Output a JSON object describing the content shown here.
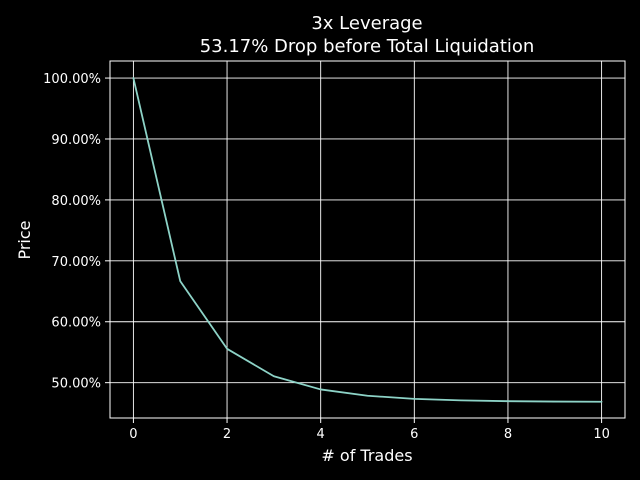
{
  "chart_data": {
    "type": "line",
    "title": "3x Leverage",
    "subtitle": "53.17% Drop before Total Liquidation",
    "xlabel": "# of Trades",
    "ylabel": "Price",
    "xlim": [
      -0.5,
      10.5
    ],
    "ylim": [
      44.2,
      102.8
    ],
    "x_ticks": [
      0,
      2,
      4,
      6,
      8,
      10
    ],
    "x_tick_labels": [
      "0",
      "2",
      "4",
      "6",
      "8",
      "10"
    ],
    "y_ticks": [
      50,
      60,
      70,
      80,
      90,
      100
    ],
    "y_tick_labels": [
      "50.00%",
      "60.00%",
      "70.00%",
      "80.00%",
      "90.00%",
      "100.00%"
    ],
    "grid": true,
    "series": [
      {
        "x": [
          0,
          1,
          2,
          3,
          4,
          5,
          6,
          7,
          8,
          9,
          10
        ],
        "values": [
          100.0,
          66.67,
          55.56,
          51.05,
          48.89,
          47.85,
          47.34,
          47.09,
          46.96,
          46.9,
          46.87
        ]
      }
    ],
    "colors": {
      "background": "#000000",
      "line": "#8dd3c7",
      "axes": "#ffffff",
      "grid": "#ffffff",
      "text": "#ffffff"
    }
  }
}
